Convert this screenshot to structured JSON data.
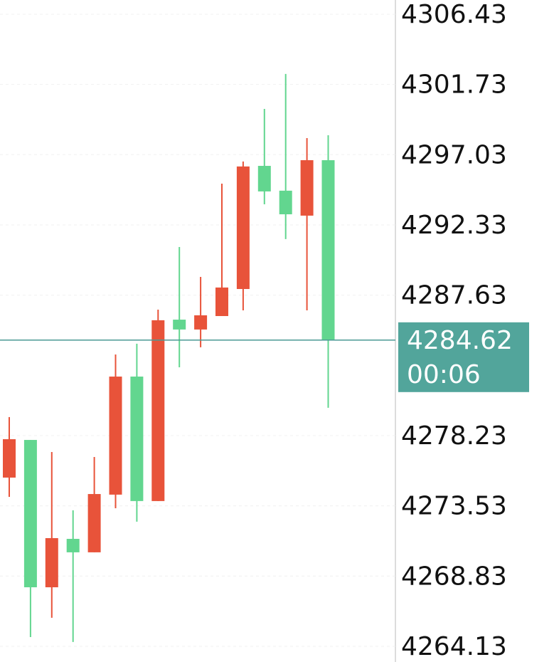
{
  "chart_data": {
    "type": "candlestick",
    "open": [
      4275.42,
      4277.94,
      4268.08,
      4271.32,
      4270.42,
      4274.28,
      4282.18,
      4273.85,
      4285.99,
      4285.33,
      4286.23,
      4288.04,
      4296.28,
      4294.62,
      4292.95,
      4296.66
    ],
    "high": [
      4279.47,
      4277.94,
      4277.13,
      4273.23,
      4276.8,
      4283.66,
      4284.38,
      4286.66,
      4290.85,
      4288.85,
      4295.09,
      4296.57,
      4300.09,
      4302.43,
      4298.14,
      4298.33
    ],
    "low": [
      4274.13,
      4264.75,
      4266.04,
      4264.42,
      4270.42,
      4273.37,
      4272.47,
      4273.85,
      4282.8,
      4284.14,
      4286.23,
      4286.61,
      4293.71,
      4291.38,
      4286.61,
      4280.09
    ],
    "close": [
      4277.99,
      4268.08,
      4271.37,
      4270.42,
      4274.32,
      4282.18,
      4273.85,
      4285.95,
      4285.33,
      4286.28,
      4288.14,
      4296.24,
      4294.57,
      4293.04,
      4296.66,
      4284.62
    ],
    "up_color": "#e8533a",
    "down_color": "#62d68f",
    "ylim": [
      4263.08,
      4307.38
    ],
    "yticks": [
      4306.43,
      4301.73,
      4297.03,
      4292.33,
      4287.63,
      4278.23,
      4273.53,
      4268.83,
      4264.13
    ],
    "grid": true,
    "current_price": 4284.62,
    "countdown": "00:06",
    "price_line_color": "#4a9a94",
    "price_label_color": "#52a59b"
  }
}
